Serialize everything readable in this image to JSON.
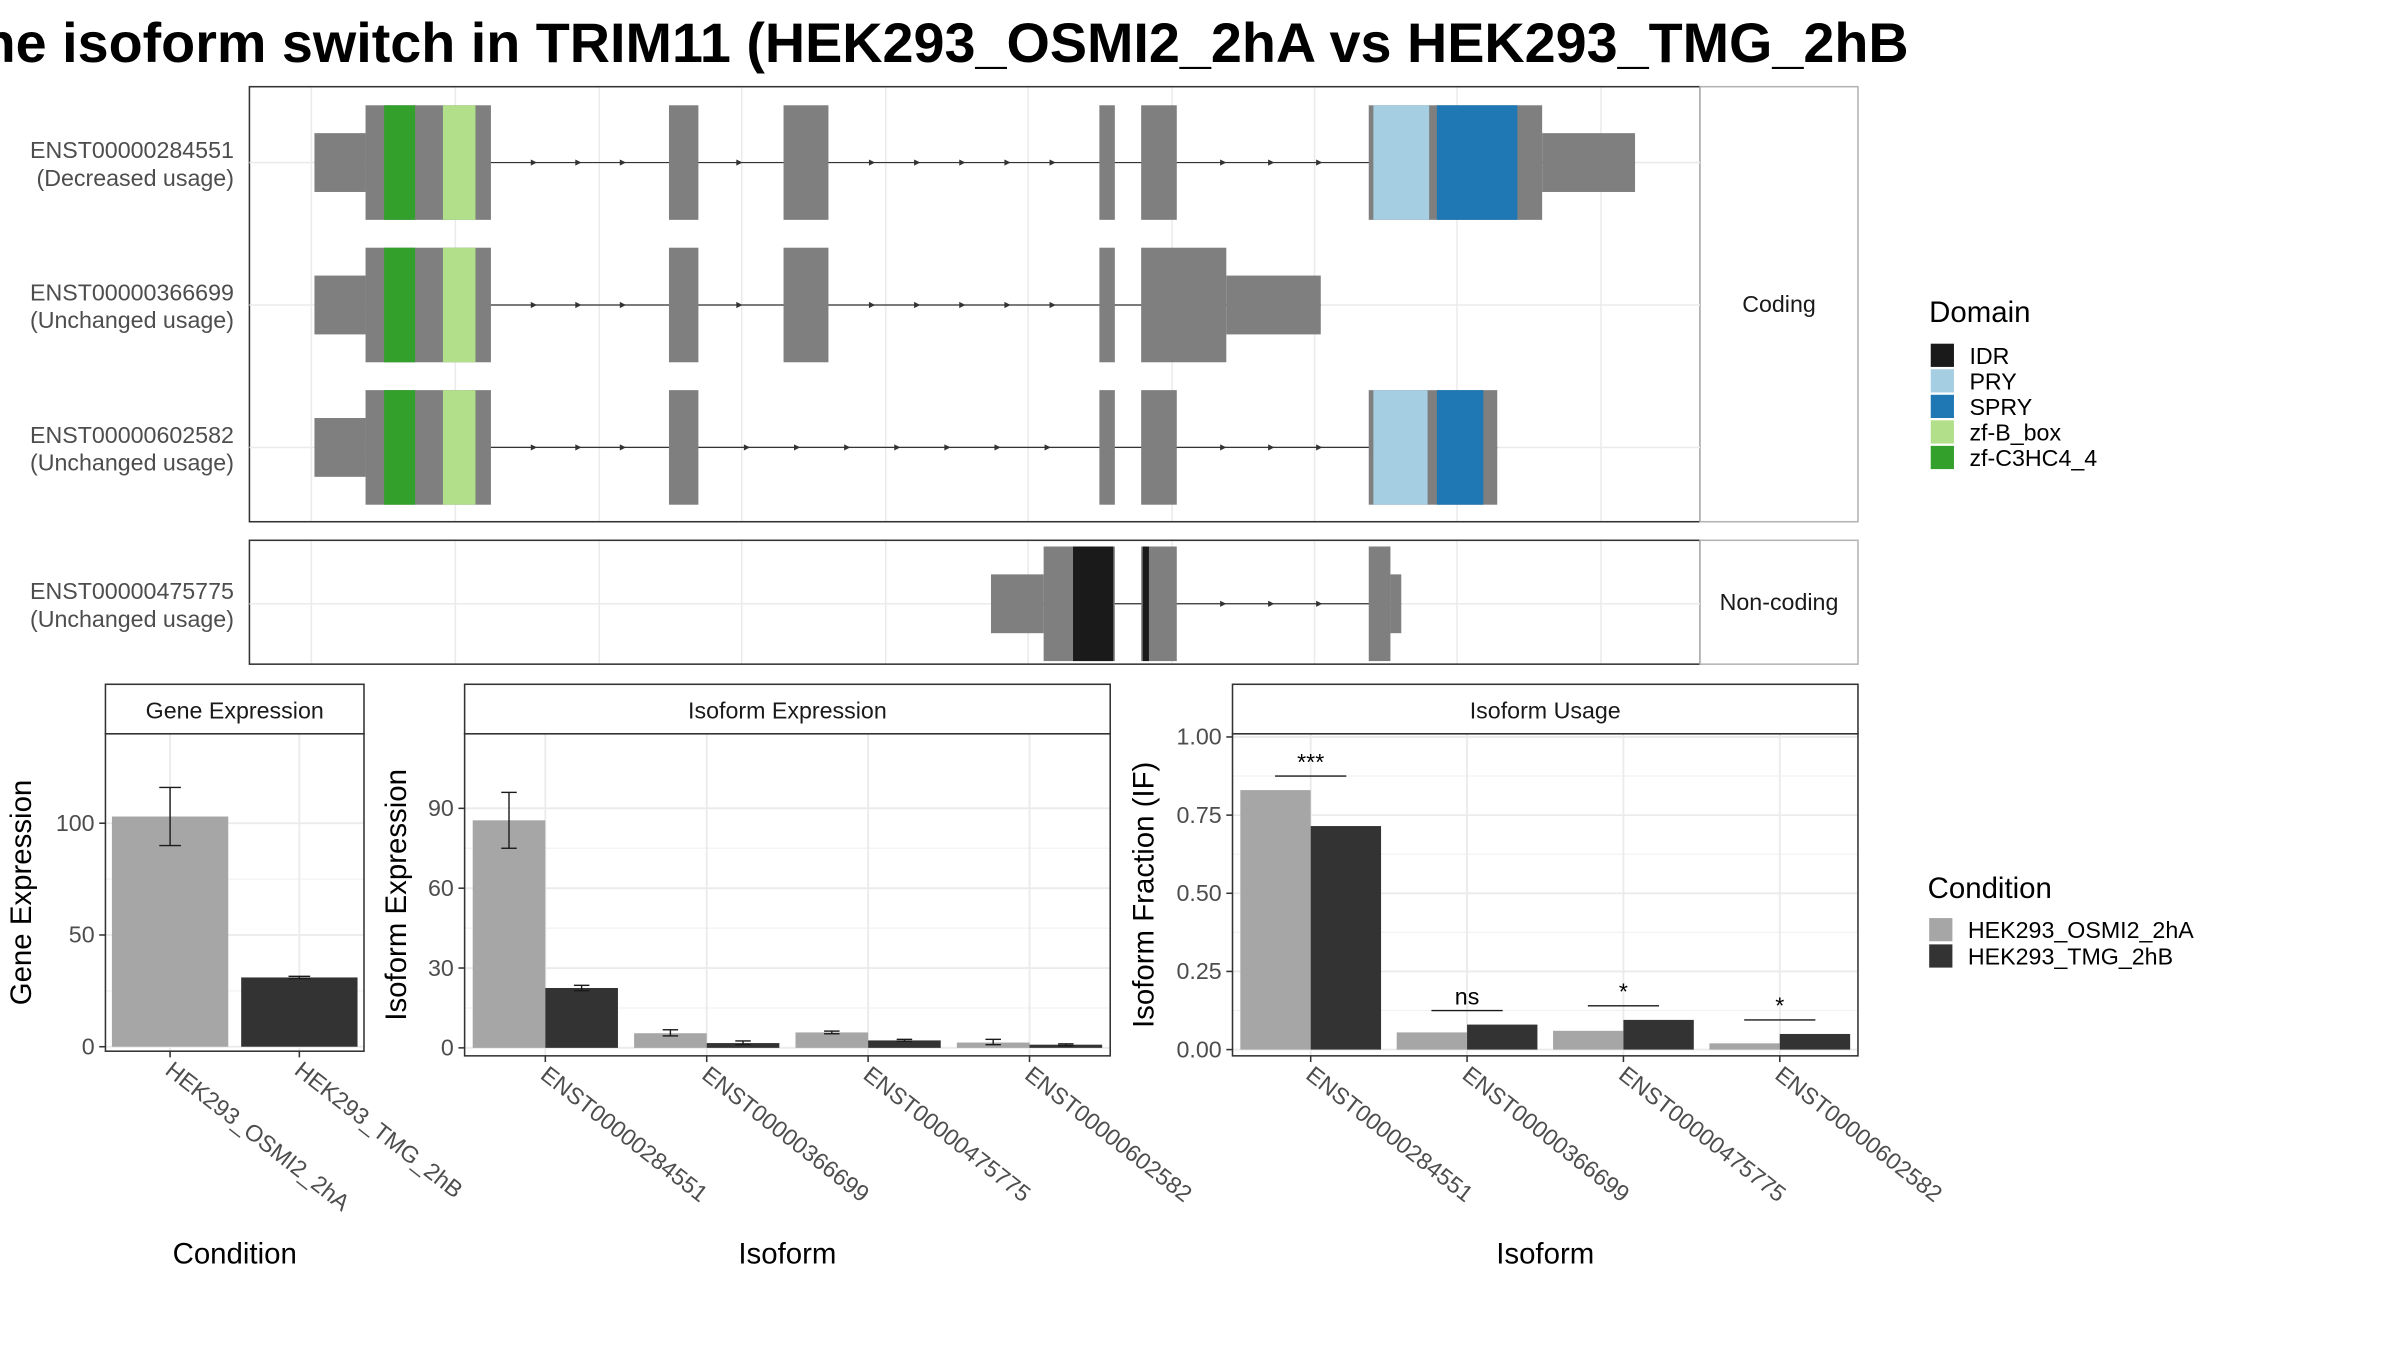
{
  "title": "he isoform switch in TRIM11 (HEK293_OSMI2_2hA vs HEK293_TMG_2hB",
  "colors": {
    "exon": "#7f7f7f",
    "IDR": "#1a1a1a",
    "PRY": "#a6cee3",
    "SPRY": "#1f78b4",
    "zf-B_box": "#b2df8a",
    "zf-C3HC4_4": "#33a02c",
    "cond_a": "#a6a6a6",
    "cond_b": "#333333",
    "grid": "#ebebeb",
    "strip_bg": "#ffffff"
  },
  "structure": {
    "coding_label": "Coding",
    "noncoding_label": "Non-coding",
    "isoforms": [
      {
        "id": "ENST00000284551",
        "usage": "(Decreased usage)",
        "group": "coding",
        "blocks": [
          {
            "x0": 203,
            "x1": 236,
            "kind": "utr"
          },
          {
            "x0": 236,
            "x1": 317,
            "kind": "cds"
          },
          {
            "x0": 432,
            "x1": 451,
            "kind": "cds"
          },
          {
            "x0": 506,
            "x1": 535,
            "kind": "cds"
          },
          {
            "x0": 710,
            "x1": 720,
            "kind": "cds"
          },
          {
            "x0": 737,
            "x1": 760,
            "kind": "cds"
          },
          {
            "x0": 884,
            "x1": 996,
            "kind": "cds"
          },
          {
            "x0": 996,
            "x1": 1056,
            "kind": "utr"
          }
        ],
        "domains": [
          {
            "x0": 248,
            "x1": 268,
            "d": "zf-C3HC4_4"
          },
          {
            "x0": 286,
            "x1": 307,
            "d": "zf-B_box"
          },
          {
            "x0": 887,
            "x1": 923,
            "d": "PRY"
          },
          {
            "x0": 928,
            "x1": 980,
            "d": "SPRY"
          }
        ]
      },
      {
        "id": "ENST00000366699",
        "usage": "(Unchanged usage)",
        "group": "coding",
        "blocks": [
          {
            "x0": 203,
            "x1": 236,
            "kind": "utr"
          },
          {
            "x0": 236,
            "x1": 317,
            "kind": "cds"
          },
          {
            "x0": 432,
            "x1": 451,
            "kind": "cds"
          },
          {
            "x0": 506,
            "x1": 535,
            "kind": "cds"
          },
          {
            "x0": 710,
            "x1": 720,
            "kind": "cds"
          },
          {
            "x0": 737,
            "x1": 792,
            "kind": "cds"
          },
          {
            "x0": 792,
            "x1": 853,
            "kind": "utr"
          }
        ],
        "domains": [
          {
            "x0": 248,
            "x1": 268,
            "d": "zf-C3HC4_4"
          },
          {
            "x0": 286,
            "x1": 307,
            "d": "zf-B_box"
          }
        ]
      },
      {
        "id": "ENST00000602582",
        "usage": "(Unchanged usage)",
        "group": "coding",
        "blocks": [
          {
            "x0": 203,
            "x1": 236,
            "kind": "utr"
          },
          {
            "x0": 236,
            "x1": 317,
            "kind": "cds"
          },
          {
            "x0": 432,
            "x1": 451,
            "kind": "cds"
          },
          {
            "x0": 710,
            "x1": 720,
            "kind": "cds"
          },
          {
            "x0": 737,
            "x1": 760,
            "kind": "cds"
          },
          {
            "x0": 884,
            "x1": 967,
            "kind": "cds"
          }
        ],
        "domains": [
          {
            "x0": 248,
            "x1": 268,
            "d": "zf-C3HC4_4"
          },
          {
            "x0": 286,
            "x1": 307,
            "d": "zf-B_box"
          },
          {
            "x0": 887,
            "x1": 922,
            "d": "PRY"
          },
          {
            "x0": 928,
            "x1": 958,
            "d": "SPRY"
          }
        ]
      },
      {
        "id": "ENST00000475775",
        "usage": "(Unchanged usage)",
        "group": "noncoding",
        "blocks": [
          {
            "x0": 640,
            "x1": 674,
            "kind": "utr"
          },
          {
            "x0": 674,
            "x1": 720,
            "kind": "cds"
          },
          {
            "x0": 737,
            "x1": 760,
            "kind": "cds"
          },
          {
            "x0": 884,
            "x1": 898,
            "kind": "cds"
          },
          {
            "x0": 898,
            "x1": 905,
            "kind": "utr"
          }
        ],
        "domains": [
          {
            "x0": 693,
            "x1": 719,
            "d": "IDR"
          },
          {
            "x0": 738,
            "x1": 742,
            "d": "IDR"
          }
        ]
      }
    ]
  },
  "legend_domain": {
    "title": "Domain",
    "items": [
      "IDR",
      "PRY",
      "SPRY",
      "zf-B_box",
      "zf-C3HC4_4"
    ]
  },
  "legend_condition": {
    "title": "Condition",
    "items": [
      "HEK293_OSMI2_2hA",
      "HEK293_TMG_2hB"
    ]
  },
  "chart_data": [
    {
      "type": "bar",
      "title": "Gene Expression",
      "xlabel": "Condition",
      "ylabel": "Gene Expression",
      "categories": [
        "HEK293_OSMI2_2hA",
        "HEK293_TMG_2hB"
      ],
      "values": [
        103,
        31
      ],
      "errors": [
        [
          90,
          116
        ],
        [
          30.5,
          31.5
        ]
      ],
      "ylim": [
        -2,
        140
      ],
      "yticks": [
        0,
        50,
        100
      ]
    },
    {
      "type": "bar",
      "title": "Isoform Expression",
      "xlabel": "Isoform",
      "ylabel": "Isoform Expression",
      "categories": [
        "ENST00000284551",
        "ENST00000366699",
        "ENST00000475775",
        "ENST00000602582"
      ],
      "series": [
        {
          "name": "HEK293_OSMI2_2hA",
          "values": [
            85.5,
            5.5,
            5.8,
            2.0
          ],
          "errors": [
            [
              75,
              96
            ],
            [
              4.5,
              6.8
            ],
            [
              5.3,
              6.3
            ],
            [
              1.2,
              3.2
            ]
          ]
        },
        {
          "name": "HEK293_TMG_2hB",
          "values": [
            22.5,
            1.8,
            2.8,
            1.2
          ],
          "errors": [
            [
              21.5,
              23.5
            ],
            [
              1.2,
              2.6
            ],
            [
              2.5,
              3.2
            ],
            [
              0.8,
              1.5
            ]
          ]
        }
      ],
      "ylim": [
        -3,
        118
      ],
      "yticks": [
        0,
        30,
        60,
        90
      ]
    },
    {
      "type": "bar",
      "title": "Isoform Usage",
      "xlabel": "Isoform",
      "ylabel": "Isoform Fraction (IF)",
      "categories": [
        "ENST00000284551",
        "ENST00000366699",
        "ENST00000475775",
        "ENST00000602582"
      ],
      "series": [
        {
          "name": "HEK293_OSMI2_2hA",
          "values": [
            0.83,
            0.055,
            0.06,
            0.02
          ]
        },
        {
          "name": "HEK293_TMG_2hB",
          "values": [
            0.715,
            0.08,
            0.095,
            0.05
          ]
        }
      ],
      "significance": [
        "***",
        "ns",
        "*",
        "*"
      ],
      "ylim": [
        -0.02,
        1.01
      ],
      "yticks": [
        0.0,
        0.25,
        0.5,
        0.75,
        1.0
      ],
      "ytick_labels": [
        "0.00",
        "0.25",
        "0.50",
        "0.75",
        "1.00"
      ]
    }
  ]
}
